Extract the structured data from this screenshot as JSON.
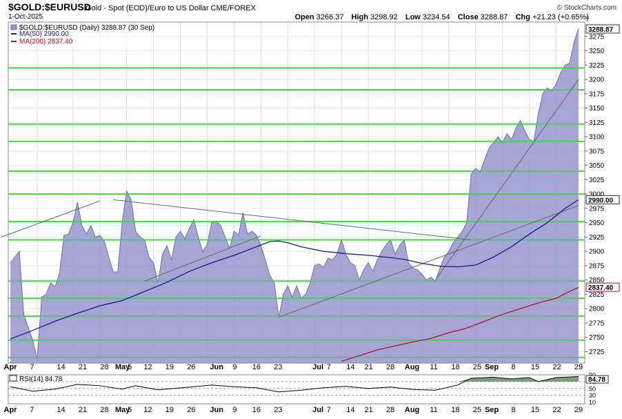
{
  "header": {
    "symbol": "$GOLD:$EURUSD",
    "description": "Gold - Spot (EOD)/Euro to US Dollar  CME/FOREX",
    "credit": "© StockCharts.com",
    "date": "1-Oct-2025",
    "open_label": "Open",
    "open": "3266.37",
    "high_label": "High",
    "high": "3298.92",
    "low_label": "Low",
    "low": "3234.54",
    "close_label": "Close",
    "close": "3288.87",
    "chg_label": "Chg",
    "chg": "+21.23 (+0.65%)"
  },
  "legend": {
    "price": "$GOLD:$EURUSD (Daily) 3288.87 (30 Sep)",
    "ma50": "MA(50) 2990.00",
    "ma200": "MA(200) 2837.40",
    "rsi": "RSI(14) 84.78"
  },
  "colors": {
    "area_fill": "#9597cc",
    "area_line": "#6e70a8",
    "ma50": "#1a1a8c",
    "ma200": "#b0102a",
    "hline": "#3ddc3d",
    "trend": "#666666",
    "grid": "#dddddd"
  },
  "chart_data": {
    "type": "area",
    "title": "$GOLD:$EURUSD",
    "x_tick_labels": [
      "Apr",
      "7",
      "14",
      "21",
      "28",
      "May",
      "5",
      "12",
      "19",
      "26",
      "Jun",
      "9",
      "16",
      "23",
      "Jul",
      "7",
      "14",
      "21",
      "28",
      "Aug",
      "11",
      "18",
      "25",
      "Sep",
      "8",
      "15",
      "22",
      "29"
    ],
    "y_ticks": [
      2725,
      2750,
      2775,
      2800,
      2825,
      2850,
      2875,
      2900,
      2925,
      2950,
      2975,
      3000,
      3025,
      3050,
      3075,
      3100,
      3125,
      3150,
      3175,
      3200,
      3225,
      3250,
      3275
    ],
    "ylim": [
      2705,
      3300
    ],
    "last_value_label": "3288.87",
    "ma50_value_label": "2990.00",
    "ma200_value_label": "2837.40",
    "rsi_value_label": "84.78",
    "horizontal_levels": [
      2715,
      2745,
      2787,
      2818,
      2848,
      2920,
      2952,
      3000,
      3040,
      3092,
      3122,
      3182,
      3220
    ],
    "price": [
      [
        0,
        2880
      ],
      [
        2,
        2900
      ],
      [
        3,
        2790
      ],
      [
        5,
        2745
      ],
      [
        6,
        2712
      ],
      [
        7,
        2820
      ],
      [
        8,
        2825
      ],
      [
        9,
        2845
      ],
      [
        10,
        2838
      ],
      [
        11,
        2862
      ],
      [
        12,
        2928
      ],
      [
        13,
        2930
      ],
      [
        14,
        2950
      ],
      [
        15,
        2986
      ],
      [
        16,
        2945
      ],
      [
        17,
        2930
      ],
      [
        18,
        2945
      ],
      [
        19,
        2925
      ],
      [
        20,
        2928
      ],
      [
        21,
        2918
      ],
      [
        22,
        2890
      ],
      [
        23,
        2864
      ],
      [
        24,
        2864
      ],
      [
        25,
        2950
      ],
      [
        26,
        3005
      ],
      [
        27,
        2990
      ],
      [
        28,
        2935
      ],
      [
        29,
        2925
      ],
      [
        30,
        2920
      ],
      [
        31,
        2890
      ],
      [
        32,
        2880
      ],
      [
        33,
        2845
      ],
      [
        34,
        2895
      ],
      [
        35,
        2910
      ],
      [
        36,
        2885
      ],
      [
        37,
        2925
      ],
      [
        38,
        2935
      ],
      [
        39,
        2922
      ],
      [
        40,
        2940
      ],
      [
        41,
        2955
      ],
      [
        42,
        2925
      ],
      [
        43,
        2900
      ],
      [
        44,
        2912
      ],
      [
        45,
        2950
      ],
      [
        46,
        2952
      ],
      [
        47,
        2945
      ],
      [
        48,
        2925
      ],
      [
        49,
        2905
      ],
      [
        50,
        2935
      ],
      [
        51,
        2928
      ],
      [
        52,
        2968
      ],
      [
        53,
        2930
      ],
      [
        54,
        2935
      ],
      [
        55,
        2928
      ],
      [
        56,
        2910
      ],
      [
        57,
        2885
      ],
      [
        58,
        2858
      ],
      [
        59,
        2845
      ],
      [
        60,
        2785
      ],
      [
        61,
        2825
      ],
      [
        62,
        2840
      ],
      [
        63,
        2820
      ],
      [
        64,
        2840
      ],
      [
        65,
        2818
      ],
      [
        66,
        2825
      ],
      [
        67,
        2845
      ],
      [
        68,
        2875
      ],
      [
        69,
        2878
      ],
      [
        70,
        2872
      ],
      [
        71,
        2888
      ],
      [
        72,
        2885
      ],
      [
        73,
        2895
      ],
      [
        74,
        2920
      ],
      [
        75,
        2895
      ],
      [
        76,
        2880
      ],
      [
        77,
        2875
      ],
      [
        78,
        2850
      ],
      [
        79,
        2868
      ],
      [
        80,
        2880
      ],
      [
        81,
        2865
      ],
      [
        82,
        2885
      ],
      [
        83,
        2900
      ],
      [
        84,
        2912
      ],
      [
        85,
        2920
      ],
      [
        86,
        2895
      ],
      [
        87,
        2910
      ],
      [
        88,
        2920
      ],
      [
        89,
        2880
      ],
      [
        90,
        2870
      ],
      [
        91,
        2868
      ],
      [
        92,
        2860
      ],
      [
        93,
        2850
      ],
      [
        94,
        2855
      ],
      [
        95,
        2848
      ],
      [
        96,
        2870
      ],
      [
        97,
        2890
      ],
      [
        98,
        2900
      ],
      [
        99,
        2915
      ],
      [
        100,
        2925
      ],
      [
        101,
        2935
      ],
      [
        102,
        2950
      ],
      [
        103,
        3035
      ],
      [
        104,
        3045
      ],
      [
        105,
        3038
      ],
      [
        106,
        3060
      ],
      [
        107,
        3080
      ],
      [
        108,
        3090
      ],
      [
        109,
        3100
      ],
      [
        110,
        3090
      ],
      [
        111,
        3105
      ],
      [
        112,
        3095
      ],
      [
        113,
        3115
      ],
      [
        114,
        3128
      ],
      [
        115,
        3110
      ],
      [
        116,
        3095
      ],
      [
        117,
        3092
      ],
      [
        118,
        3140
      ],
      [
        119,
        3175
      ],
      [
        120,
        3185
      ],
      [
        121,
        3180
      ],
      [
        122,
        3192
      ],
      [
        123,
        3212
      ],
      [
        124,
        3225
      ],
      [
        125,
        3228
      ],
      [
        126,
        3265
      ],
      [
        127,
        3289
      ]
    ],
    "ma50": [
      [
        0,
        2747
      ],
      [
        5,
        2762
      ],
      [
        10,
        2778
      ],
      [
        15,
        2792
      ],
      [
        20,
        2805
      ],
      [
        25,
        2814
      ],
      [
        30,
        2830
      ],
      [
        35,
        2846
      ],
      [
        40,
        2865
      ],
      [
        45,
        2880
      ],
      [
        50,
        2893
      ],
      [
        55,
        2908
      ],
      [
        58,
        2917
      ],
      [
        60,
        2918
      ],
      [
        62,
        2915
      ],
      [
        65,
        2908
      ],
      [
        70,
        2900
      ],
      [
        75,
        2896
      ],
      [
        80,
        2893
      ],
      [
        85,
        2889
      ],
      [
        88,
        2886
      ],
      [
        92,
        2879
      ],
      [
        96,
        2874
      ],
      [
        100,
        2873
      ],
      [
        104,
        2876
      ],
      [
        108,
        2890
      ],
      [
        112,
        2908
      ],
      [
        116,
        2930
      ],
      [
        120,
        2950
      ],
      [
        124,
        2975
      ],
      [
        127,
        2990
      ]
    ],
    "ma200": [
      [
        74,
        2708
      ],
      [
        78,
        2718
      ],
      [
        82,
        2728
      ],
      [
        86,
        2735
      ],
      [
        90,
        2742
      ],
      [
        94,
        2748
      ],
      [
        98,
        2758
      ],
      [
        102,
        2766
      ],
      [
        106,
        2778
      ],
      [
        110,
        2790
      ],
      [
        114,
        2800
      ],
      [
        118,
        2810
      ],
      [
        122,
        2818
      ],
      [
        125,
        2830
      ],
      [
        127,
        2837
      ]
    ],
    "trendlines": [
      [
        [
          -2,
          2925
        ],
        [
          20,
          2988
        ]
      ],
      [
        [
          23,
          2990
        ],
        [
          103,
          2920
        ]
      ],
      [
        [
          30,
          2848
        ],
        [
          56,
          2927
        ]
      ],
      [
        [
          60,
          2785
        ],
        [
          127,
          2980
        ]
      ],
      [
        [
          95,
          2850
        ],
        [
          127,
          3200
        ]
      ]
    ],
    "rsi": {
      "ticks": [
        10,
        30,
        50,
        70,
        90
      ],
      "tick_labels": [
        "10",
        "30",
        "50",
        "70",
        "90"
      ],
      "values": [
        [
          0,
          55
        ],
        [
          5,
          42
        ],
        [
          10,
          48
        ],
        [
          15,
          62
        ],
        [
          20,
          58
        ],
        [
          25,
          48
        ],
        [
          28,
          58
        ],
        [
          33,
          46
        ],
        [
          40,
          54
        ],
        [
          45,
          60
        ],
        [
          50,
          55
        ],
        [
          55,
          52
        ],
        [
          60,
          40
        ],
        [
          65,
          45
        ],
        [
          70,
          52
        ],
        [
          75,
          56
        ],
        [
          80,
          50
        ],
        [
          85,
          54
        ],
        [
          90,
          47
        ],
        [
          95,
          45
        ],
        [
          100,
          60
        ],
        [
          103,
          80
        ],
        [
          108,
          83
        ],
        [
          112,
          78
        ],
        [
          116,
          82
        ],
        [
          118,
          70
        ],
        [
          122,
          82
        ],
        [
          127,
          85
        ]
      ]
    }
  }
}
